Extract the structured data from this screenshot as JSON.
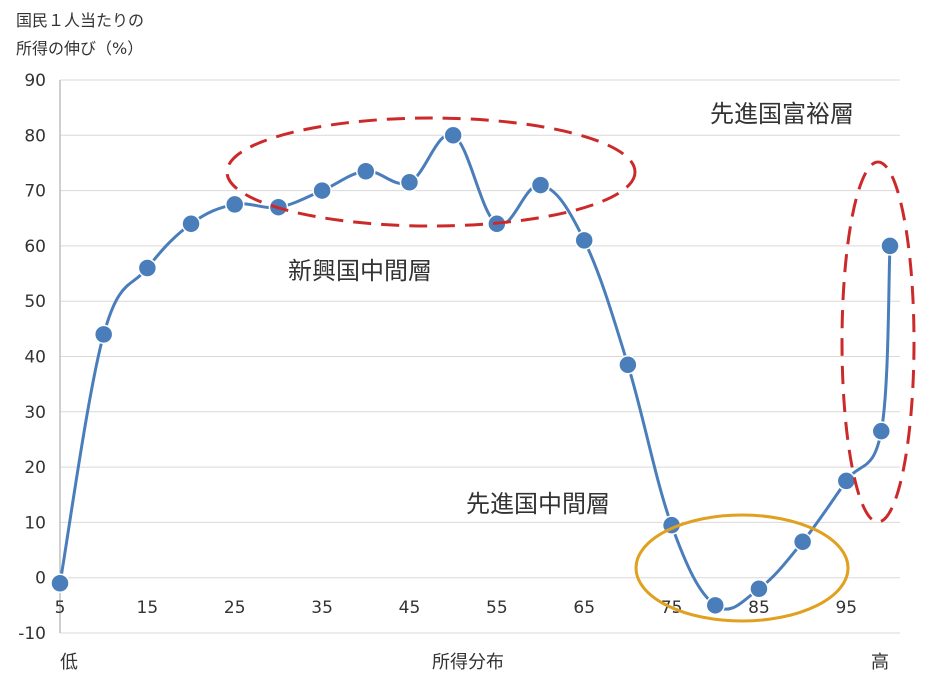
{
  "chart_data": {
    "type": "line",
    "ylabel_line1": "国民１人当たりの",
    "ylabel_line2": "所得の伸び（%）",
    "xlabel": "所得分布",
    "x_low_label": "低",
    "x_high_label": "高",
    "ylim": [
      -10,
      90
    ],
    "yticks": [
      -10,
      0,
      10,
      20,
      30,
      40,
      50,
      60,
      70,
      80,
      90
    ],
    "xlim": [
      5,
      100
    ],
    "xticks": [
      5,
      15,
      25,
      35,
      45,
      55,
      65,
      75,
      85,
      95
    ],
    "grid": "horizontal",
    "series": [
      {
        "x": [
          5,
          10,
          15,
          20,
          25,
          30,
          35,
          40,
          45,
          50,
          55,
          60,
          65,
          70,
          75,
          80,
          85,
          90,
          95,
          99,
          100
        ],
        "values": [
          -1,
          44,
          56,
          64,
          67.5,
          67,
          70,
          73.5,
          71.5,
          80,
          64,
          71,
          61,
          38.5,
          9.5,
          -5,
          -2,
          6.5,
          17.5,
          26.5,
          60
        ]
      }
    ],
    "annotations": [
      {
        "text": "先進国富裕層"
      },
      {
        "text": "新興国中間層"
      },
      {
        "text": "先進国中間層"
      }
    ],
    "colors": {
      "line": "#4a7ebb",
      "marker": "#4a7ebb",
      "grid": "#d9d9d9",
      "red_ellipse": "#cc2a2a",
      "orange_ellipse": "#e0a020"
    }
  }
}
